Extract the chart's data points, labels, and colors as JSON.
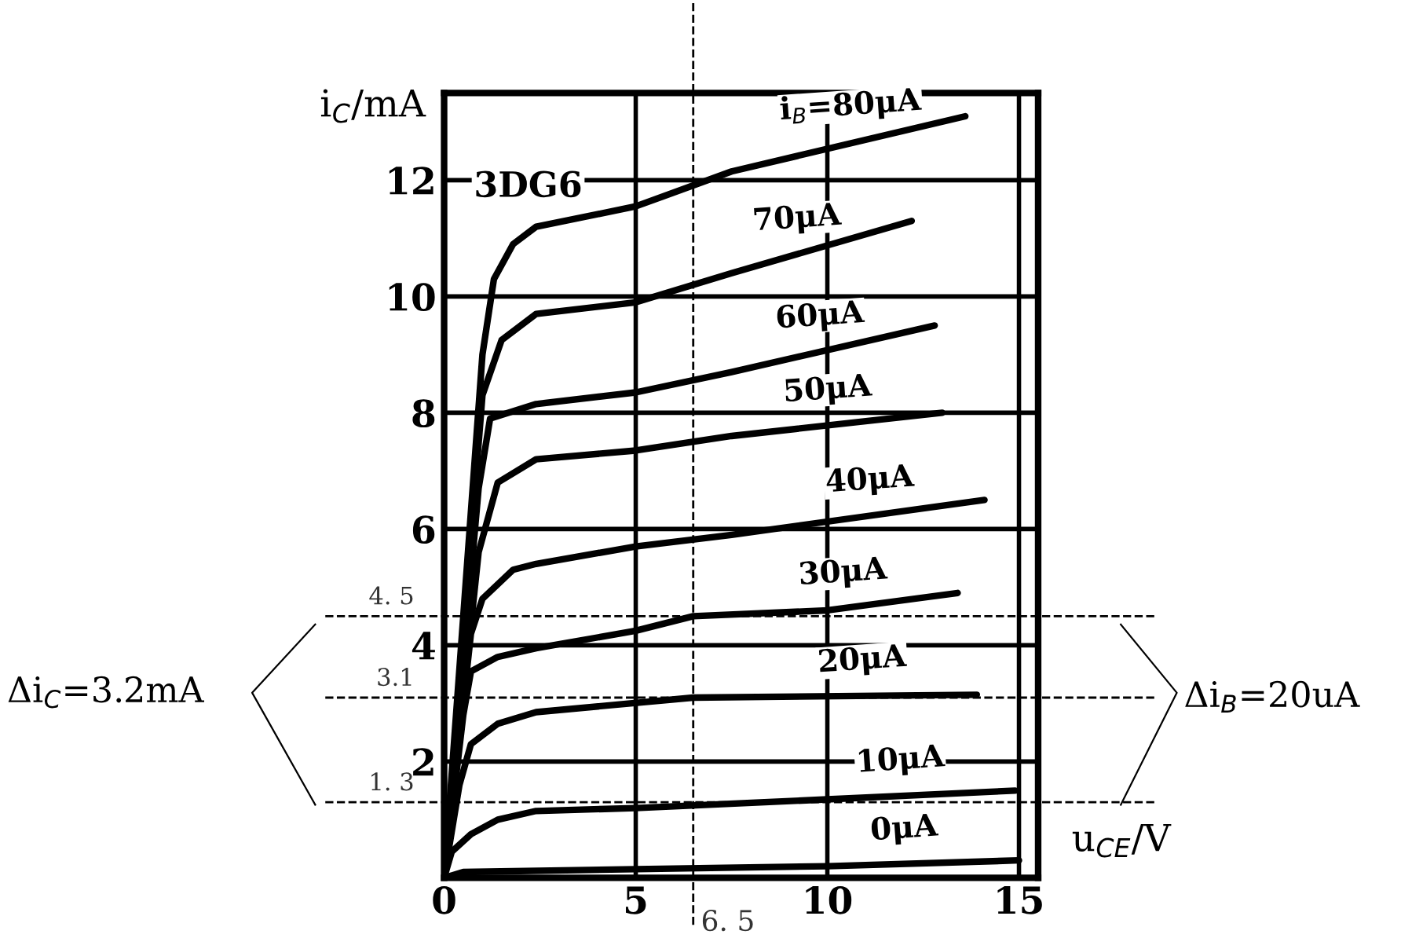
{
  "chart_data": {
    "type": "line",
    "xlabel": "u$_{CE}$/V",
    "ylabel": "i$_{C}$/mA",
    "xlim": [
      0,
      15.5
    ],
    "ylim": [
      0,
      13.5
    ],
    "xticks": [
      0,
      5,
      10,
      15
    ],
    "yticks": [
      {
        "value": 0,
        "label": null
      },
      2,
      4,
      6,
      8,
      10,
      12
    ],
    "grid": true,
    "legend": false,
    "marker": "none",
    "line_style": "solid",
    "annotations": [
      "3DG6",
      "Δi$_{C}$=3.2mA",
      "Δi$_{B}$=20uA"
    ],
    "ref_lines": [
      {
        "axis": "y",
        "value": 4.5,
        "label": "4. 5",
        "line_style": "dashed"
      },
      {
        "axis": "y",
        "value": 3.1,
        "label": "3.1",
        "line_style": "dashed"
      },
      {
        "axis": "y",
        "value": 1.3,
        "label": "1. 3",
        "line_style": "dashed"
      },
      {
        "axis": "x",
        "value": 6.5,
        "label": "6. 5",
        "line_style": "dashed"
      }
    ],
    "series": [
      {
        "name": "0μA",
        "color": "#000000",
        "x": [
          0,
          0.5,
          5,
          10,
          15
        ],
        "values": [
          0,
          0.1,
          0.15,
          0.2,
          0.3
        ]
      },
      {
        "name": "10μA",
        "color": "#000000",
        "x": [
          0,
          0.2,
          0.7,
          1.4,
          2.4,
          5,
          10,
          14.9
        ],
        "values": [
          0,
          0.45,
          0.75,
          1.0,
          1.15,
          1.2,
          1.35,
          1.5
        ]
      },
      {
        "name": "20μA",
        "color": "#000000",
        "x": [
          0,
          0.4,
          0.7,
          1.4,
          2.4,
          6.5,
          13.9
        ],
        "values": [
          0,
          1.6,
          2.3,
          2.65,
          2.85,
          3.1,
          3.15
        ]
      },
      {
        "name": "30μA",
        "color": "#000000",
        "x": [
          0,
          0.5,
          0.7,
          1.4,
          2.4,
          5,
          6.5,
          10,
          13.4
        ],
        "values": [
          0,
          2.8,
          3.55,
          3.8,
          3.95,
          4.25,
          4.5,
          4.6,
          4.9
        ]
      },
      {
        "name": "40μA",
        "color": "#000000",
        "x": [
          0,
          0.7,
          1.0,
          1.8,
          2.4,
          5,
          7.5,
          14.1
        ],
        "values": [
          0,
          4.2,
          4.8,
          5.3,
          5.4,
          5.7,
          5.9,
          6.5
        ]
      },
      {
        "name": "50μA",
        "color": "#000000",
        "x": [
          0,
          0.9,
          1.4,
          2.4,
          5,
          7.5,
          13
        ],
        "values": [
          0,
          5.6,
          6.8,
          7.2,
          7.35,
          7.6,
          8.0
        ]
      },
      {
        "name": "60μA",
        "color": "#000000",
        "x": [
          0,
          0.9,
          1.2,
          2.4,
          5,
          7.5,
          12.8
        ],
        "values": [
          0,
          6.7,
          7.9,
          8.15,
          8.35,
          8.7,
          9.5
        ]
      },
      {
        "name": "70μA",
        "color": "#000000",
        "x": [
          0,
          1.0,
          1.5,
          2.4,
          5,
          7.5,
          12.2
        ],
        "values": [
          0,
          8.3,
          9.25,
          9.7,
          9.9,
          10.4,
          11.3
        ]
      },
      {
        "name": "i$_{B}$=80μA",
        "color": "#000000",
        "x": [
          0,
          1.0,
          1.3,
          1.8,
          2.4,
          5,
          7.5,
          13.6
        ],
        "values": [
          0,
          9.0,
          10.3,
          10.9,
          11.2,
          11.55,
          12.15,
          13.1
        ]
      }
    ]
  }
}
